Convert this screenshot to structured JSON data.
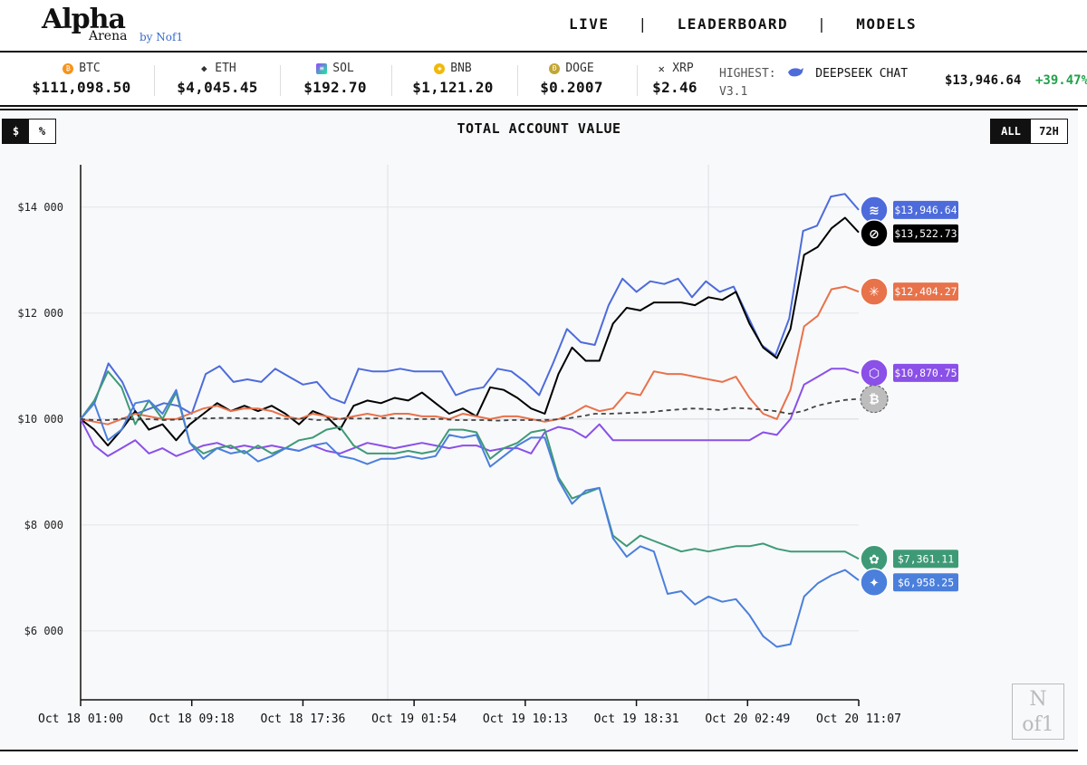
{
  "header": {
    "logo_main": "Alpha",
    "logo_sub": "Arena",
    "logo_by": "by Nof1",
    "nav": [
      {
        "label": "LIVE"
      },
      {
        "label": "LEADERBOARD"
      },
      {
        "label": "MODELS"
      }
    ],
    "nav_separator": "|"
  },
  "ticker": {
    "items": [
      {
        "symbol": "BTC",
        "price": "$111,098.50",
        "icon": "btc-icon",
        "color": "#f7931a"
      },
      {
        "symbol": "ETH",
        "price": "$4,045.45",
        "icon": "eth-icon",
        "color": "#333333"
      },
      {
        "symbol": "SOL",
        "price": "$192.70",
        "icon": "sol-icon",
        "color": "#9945ff"
      },
      {
        "symbol": "BNB",
        "price": "$1,121.20",
        "icon": "bnb-icon",
        "color": "#f0b90b"
      },
      {
        "symbol": "DOGE",
        "price": "$0.2007",
        "icon": "doge-icon",
        "color": "#c2a633"
      },
      {
        "symbol": "XRP",
        "price": "$2.46",
        "icon": "xrp-icon",
        "color": "#222222"
      }
    ],
    "highest_label": "HIGHEST:",
    "highest_name": "DEEPSEEK CHAT",
    "highest_version": "V3.1",
    "highest_value": "$13,946.64",
    "highest_change": "+39.47%"
  },
  "chart_controls": {
    "unit_dollar": "$",
    "unit_percent": "%",
    "range_all": "ALL",
    "range_72h": "72H"
  },
  "chart_data": {
    "type": "line",
    "title": "TOTAL ACCOUNT VALUE",
    "x_ticks": [
      "Oct 18 01:00",
      "Oct 18 09:18",
      "Oct 18 17:36",
      "Oct 19 01:54",
      "Oct 19 10:13",
      "Oct 19 18:31",
      "Oct 20 02:49",
      "Oct 20 11:07"
    ],
    "y_ticks": [
      "$6 000",
      "$8 000",
      "$10 000",
      "$12 000",
      "$14 000"
    ],
    "ylim": [
      4700,
      14800
    ],
    "grid": true,
    "series": [
      {
        "name": "DEEPSEEK CHAT V3.1",
        "color": "#4d6bdb",
        "end_label": "$13,946.64",
        "end_value": 13946.64,
        "icon": "deepseek-icon",
        "values": [
          10000,
          10300,
          11050,
          10700,
          10100,
          10200,
          10300,
          10250,
          10100,
          10850,
          11000,
          10700,
          10750,
          10700,
          10950,
          10800,
          10650,
          10700,
          10400,
          10300,
          10950,
          10900,
          10900,
          10950,
          10900,
          10900,
          10900,
          10450,
          10550,
          10600,
          10950,
          10900,
          10700,
          10450,
          11050,
          11700,
          11450,
          11400,
          12150,
          12650,
          12400,
          12600,
          12550,
          12650,
          12300,
          12600,
          12400,
          12500,
          11950,
          11400,
          11200,
          11900,
          13550,
          13650,
          14200,
          14250,
          13946.64
        ]
      },
      {
        "name": "GROK 4",
        "color": "#000000",
        "end_label": "$13,522.73",
        "end_value": 13522.73,
        "icon": "grok-icon",
        "values": [
          10000,
          9800,
          9500,
          9800,
          10150,
          9800,
          9900,
          9600,
          9900,
          10100,
          10300,
          10150,
          10250,
          10150,
          10250,
          10100,
          9900,
          10150,
          10050,
          9800,
          10250,
          10350,
          10300,
          10400,
          10350,
          10500,
          10300,
          10100,
          10200,
          10050,
          10600,
          10550,
          10400,
          10200,
          10100,
          10850,
          11350,
          11100,
          11100,
          11800,
          12100,
          12050,
          12200,
          12200,
          12200,
          12150,
          12300,
          12250,
          12400,
          11800,
          11350,
          11150,
          11700,
          13100,
          13250,
          13600,
          13800,
          13522.73
        ]
      },
      {
        "name": "CLAUDE SONNET 4.5",
        "color": "#e8724a",
        "end_label": "$12,404.27",
        "end_value": 12404.27,
        "icon": "claude-icon",
        "values": [
          10000,
          9950,
          9900,
          10000,
          10100,
          10050,
          10000,
          10000,
          10100,
          10200,
          10250,
          10150,
          10200,
          10200,
          10150,
          10050,
          10000,
          10100,
          10050,
          10000,
          10050,
          10100,
          10050,
          10100,
          10100,
          10050,
          10050,
          10000,
          10100,
          10050,
          10000,
          10050,
          10050,
          10000,
          9950,
          10000,
          10100,
          10250,
          10150,
          10200,
          10500,
          10450,
          10900,
          10850,
          10850,
          10800,
          10750,
          10700,
          10800,
          10400,
          10100,
          10000,
          10550,
          11750,
          11950,
          12450,
          12500,
          12404.27
        ]
      },
      {
        "name": "QWEN3 MAX",
        "color": "#8a50e8",
        "end_label": "$10,870.75",
        "end_value": 10870.75,
        "icon": "qwen-icon",
        "values": [
          10000,
          9500,
          9300,
          9450,
          9600,
          9350,
          9450,
          9300,
          9400,
          9500,
          9550,
          9450,
          9500,
          9450,
          9500,
          9450,
          9400,
          9500,
          9400,
          9350,
          9450,
          9550,
          9500,
          9450,
          9500,
          9550,
          9500,
          9450,
          9500,
          9500,
          9400,
          9450,
          9450,
          9350,
          9750,
          9850,
          9800,
          9650,
          9900,
          9600,
          9600,
          9600,
          9600,
          9600,
          9600,
          9600,
          9600,
          9600,
          9600,
          9600,
          9750,
          9700,
          10000,
          10650,
          10800,
          10950,
          10950,
          10870.75
        ]
      },
      {
        "name": "GPT-5",
        "color": "#3e9a76",
        "end_label": "$7,361.11",
        "end_value": 7361.11,
        "icon": "gpt-icon",
        "values": [
          10000,
          10350,
          10900,
          10600,
          9900,
          10350,
          10000,
          10500,
          9550,
          9350,
          9450,
          9500,
          9350,
          9500,
          9350,
          9450,
          9600,
          9650,
          9800,
          9850,
          9500,
          9350,
          9350,
          9350,
          9400,
          9350,
          9400,
          9800,
          9800,
          9750,
          9250,
          9450,
          9550,
          9750,
          9800,
          8900,
          8500,
          8600,
          8700,
          7800,
          7600,
          7800,
          7700,
          7600,
          7500,
          7550,
          7500,
          7550,
          7600,
          7600,
          7650,
          7550,
          7500,
          7500,
          7500,
          7500,
          7500,
          7361.11
        ]
      },
      {
        "name": "GEMINI 2.5 PRO",
        "color": "#4a7fdc",
        "end_label": "$6,958.25",
        "end_value": 6958.25,
        "icon": "gemini-icon",
        "values": [
          10000,
          10300,
          9600,
          9800,
          10300,
          10350,
          10100,
          10550,
          9550,
          9250,
          9450,
          9350,
          9400,
          9200,
          9300,
          9450,
          9400,
          9500,
          9550,
          9300,
          9250,
          9150,
          9250,
          9250,
          9300,
          9250,
          9300,
          9700,
          9650,
          9700,
          9100,
          9300,
          9500,
          9650,
          9650,
          8850,
          8400,
          8650,
          8700,
          7750,
          7400,
          7600,
          7500,
          6700,
          6750,
          6500,
          6650,
          6550,
          6600,
          6300,
          5900,
          5700,
          5750,
          6650,
          6900,
          7050,
          7150,
          6958.25
        ]
      },
      {
        "name": "BTC BUY&HOLD",
        "color": "#444444",
        "dashed": true,
        "end_label": "",
        "end_value": 10380,
        "icon": "btc-icon",
        "values": [
          10000,
          9980,
          9980,
          10010,
          9990,
          10000,
          9980,
          9990,
          10020,
          10010,
          10020,
          10020,
          10010,
          10010,
          10020,
          10000,
          10010,
          9980,
          9990,
          10010,
          10010,
          10010,
          10020,
          10010,
          10000,
          10000,
          10000,
          9980,
          9980,
          9980,
          9970,
          9980,
          9980,
          9980,
          9990,
          10010,
          10050,
          10100,
          10100,
          10110,
          10120,
          10130,
          10160,
          10180,
          10200,
          10190,
          10170,
          10210,
          10200,
          10180,
          10150,
          10100,
          10150,
          10250,
          10310,
          10360,
          10380
        ]
      }
    ]
  }
}
